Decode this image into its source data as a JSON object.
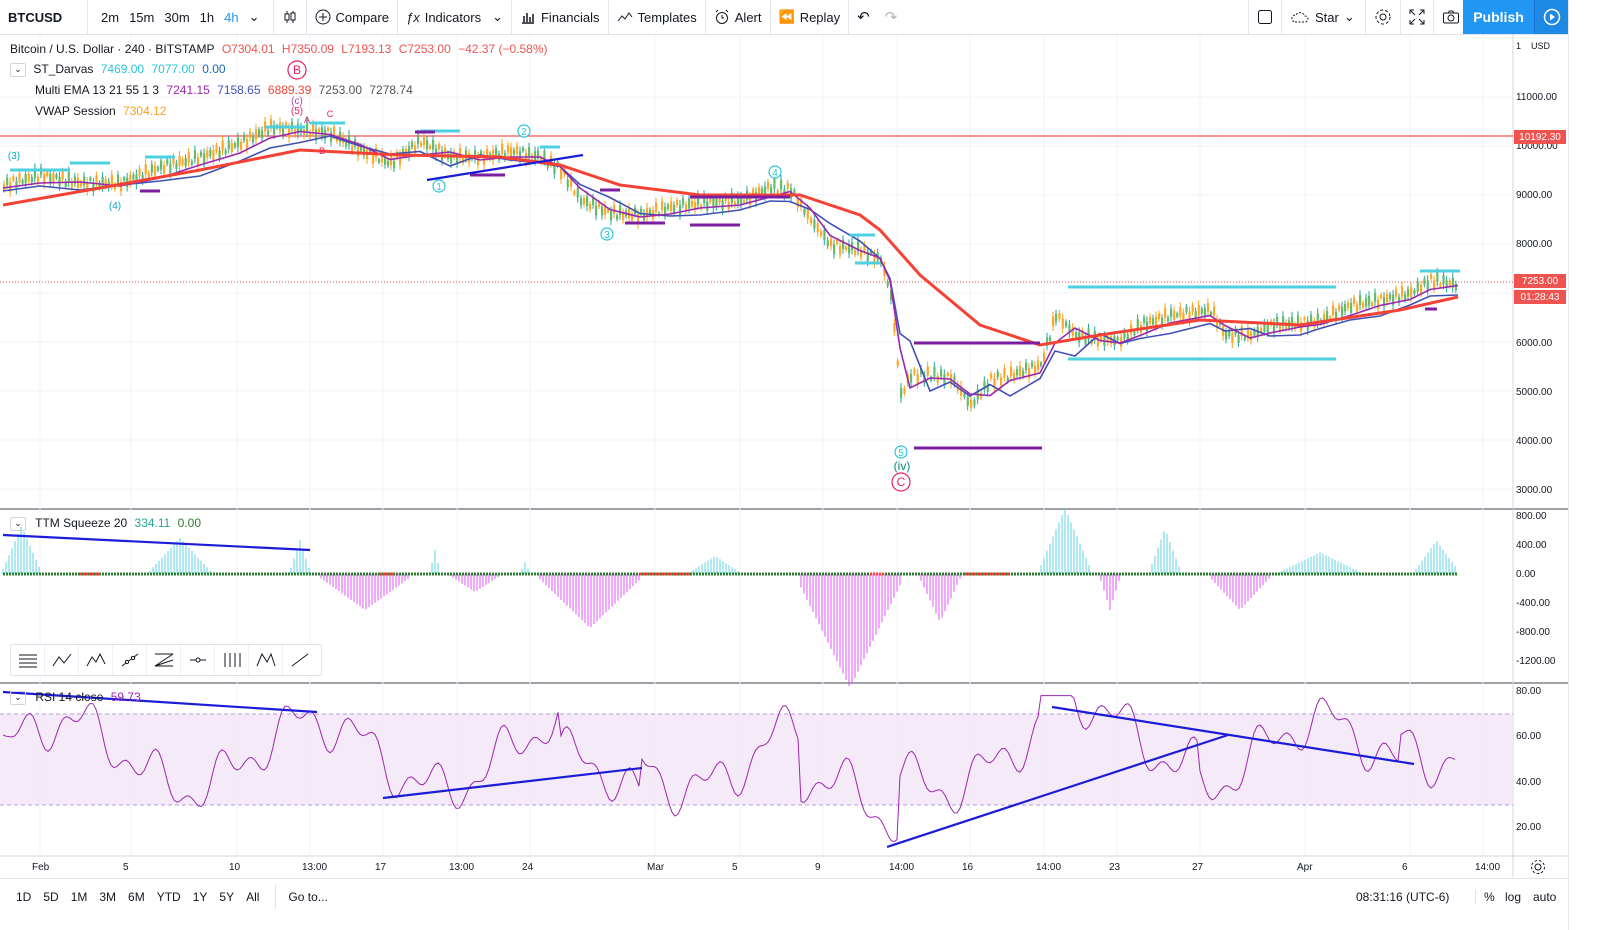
{
  "toolbar": {
    "symbol": "BTCUSD",
    "intervals": [
      "2m",
      "15m",
      "30m",
      "1h",
      "4h"
    ],
    "active_interval": "4h",
    "compare": "Compare",
    "indicators": "Indicators",
    "financials": "Financials",
    "templates": "Templates",
    "alert": "Alert",
    "replay": "Replay",
    "star": "Star",
    "publish": "Publish"
  },
  "legend": {
    "title": "Bitcoin / U.S. Dollar · 240 · BITSTAMP",
    "o": "O7304.01",
    "h": "H7350.09",
    "l": "L7193.13",
    "c": "C7253.00",
    "change": "−42.37 (−0.58%)",
    "darvas": {
      "name": "ST_Darvas",
      "v1": "7469.00",
      "v2": "7077.00",
      "v3": "0.00"
    },
    "ema": {
      "name": "Multi EMA 13 21 55 1 3",
      "v1": "7241.15",
      "v2": "7158.65",
      "v3": "6889.39",
      "v4": "7253.00",
      "v5": "7278.74"
    },
    "vwap": {
      "name": "VWAP Session",
      "v1": "7304.12"
    }
  },
  "price_axis": {
    "currency": "USD",
    "labels": [
      "11000.00",
      "10000.00",
      "9000.00",
      "8000.00",
      "6000.00",
      "5000.00",
      "4000.00",
      "3000.00"
    ],
    "top_label": "1",
    "resistance_tag": "10192.30",
    "last_price_tag": "7253.00",
    "countdown_tag": "01:28:43"
  },
  "ttm": {
    "name": "TTM Squeeze 20",
    "v1": "334.11",
    "v2": "0.00",
    "axis": [
      "800.00",
      "400.00",
      "0.00",
      "-400.00",
      "-800.00",
      "-1200.00"
    ]
  },
  "rsi": {
    "name": "RSI 14 close",
    "v1": "59.73",
    "axis": [
      "80.00",
      "60.00",
      "40.00",
      "20.00"
    ]
  },
  "time_axis": [
    "Feb",
    "5",
    "10",
    "13:00",
    "17",
    "13:00",
    "24",
    "Mar",
    "5",
    "9",
    "14:00",
    "16",
    "14:00",
    "23",
    "27",
    "Apr",
    "6",
    "14:00"
  ],
  "wave_labels": {
    "b": "B",
    "c_small": "(c)",
    "five_small": "(5)",
    "a": "A",
    "c": "C",
    "b_small": "B",
    "three": "(3)",
    "four": "(4)",
    "w1": "1",
    "w2": "2",
    "w3": "3",
    "w4": "4",
    "w5": "5",
    "iv": "(iv)",
    "big_c": "C"
  },
  "bottom": {
    "ranges": [
      "1D",
      "5D",
      "1M",
      "3M",
      "6M",
      "YTD",
      "1Y",
      "5Y",
      "All"
    ],
    "goto": "Go to...",
    "clock": "08:31:16 (UTC-6)",
    "percent": "%",
    "log": "log",
    "auto": "auto"
  },
  "colors": {
    "accent": "#2196f3",
    "resistance": "#ef5350",
    "ema_fast": "#f7a21b",
    "ema_mid": "#9c27b0",
    "ema_slow": "#3f51b5",
    "ema_long": "#f44336",
    "darvas": "#4dd0e1",
    "box": "#7b1fa2",
    "trendline": "#1c1cd8",
    "rsi": "#9c27b0",
    "rsi_band": "#f3e5f5",
    "ttm_pos": "#4dd0e1",
    "ttm_neg": "#e040fb",
    "ttm_dot_green": "#2e7d32",
    "ttm_dot_red": "#f44336"
  }
}
